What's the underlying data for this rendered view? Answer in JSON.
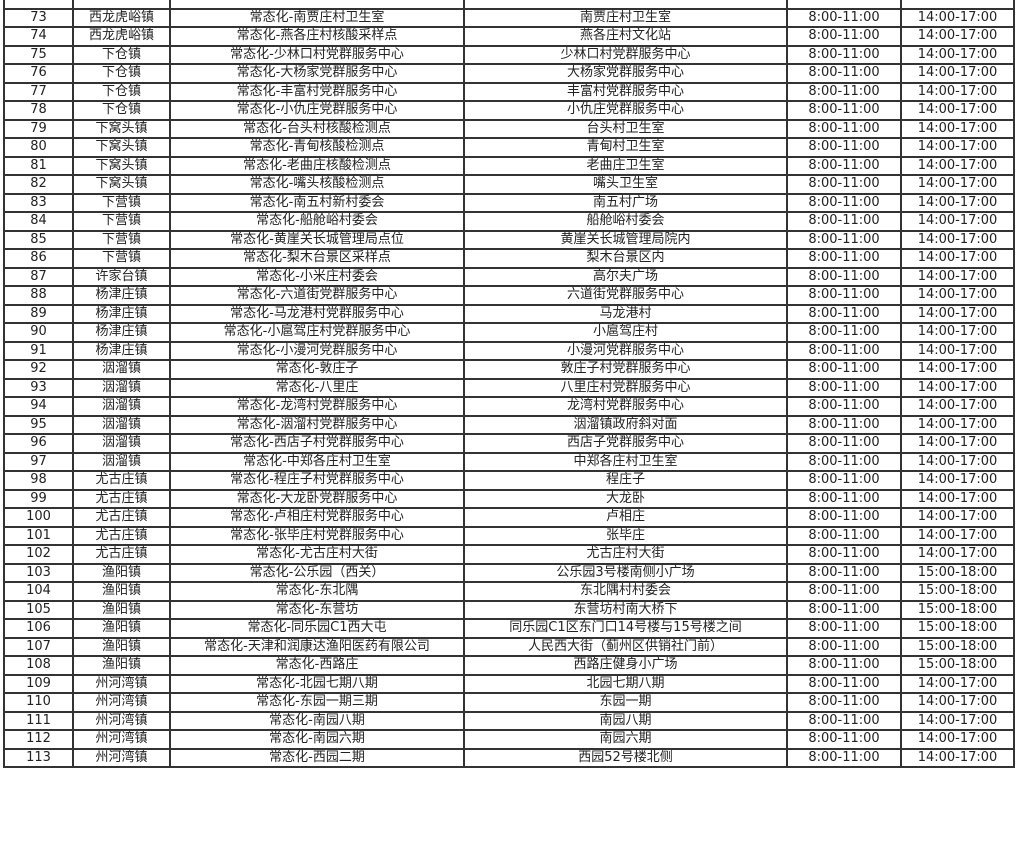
{
  "rows": [
    [
      "",
      "",
      "",
      "",
      "",
      ""
    ],
    [
      "73",
      "西龙虎峪镇",
      "常态化-南贾庄村卫生室",
      "南贾庄村卫生室",
      "8:00-11:00",
      "14:00-17:00"
    ],
    [
      "74",
      "西龙虎峪镇",
      "常态化-燕各庄村核酸采样点",
      "燕各庄村文化站",
      "8:00-11:00",
      "14:00-17:00"
    ],
    [
      "75",
      "下仓镇",
      "常态化-少林口村党群服务中心",
      "少林口村党群服务中心",
      "8:00-11:00",
      "14:00-17:00"
    ],
    [
      "76",
      "下仓镇",
      "常态化-大杨家党群服务中心",
      "大杨家党群服务中心",
      "8:00-11:00",
      "14:00-17:00"
    ],
    [
      "77",
      "下仓镇",
      "常态化-丰富村党群服务中心",
      "丰富村党群服务中心",
      "8:00-11:00",
      "14:00-17:00"
    ],
    [
      "78",
      "下仓镇",
      "常态化-小仇庄党群服务中心",
      "小仇庄党群服务中心",
      "8:00-11:00",
      "14:00-17:00"
    ],
    [
      "79",
      "下窝头镇",
      "常态化-台头村核酸检测点",
      "台头村卫生室",
      "8:00-11:00",
      "14:00-17:00"
    ],
    [
      "80",
      "下窝头镇",
      "常态化-青甸核酸检测点",
      "青甸村卫生室",
      "8:00-11:00",
      "14:00-17:00"
    ],
    [
      "81",
      "下窝头镇",
      "常态化-老曲庄核酸检测点",
      "老曲庄卫生室",
      "8:00-11:00",
      "14:00-17:00"
    ],
    [
      "82",
      "下窝头镇",
      "常态化-嘴头核酸检测点",
      "嘴头卫生室",
      "8:00-11:00",
      "14:00-17:00"
    ],
    [
      "83",
      "下营镇",
      "常态化-南五村新村委会",
      "南五村广场",
      "8:00-11:00",
      "14:00-17:00"
    ],
    [
      "84",
      "下营镇",
      "常态化-船舱峪村委会",
      "船舱峪村委会",
      "8:00-11:00",
      "14:00-17:00"
    ],
    [
      "85",
      "下营镇",
      "常态化-黄崖关长城管理局点位",
      "黄崖关长城管理局院内",
      "8:00-11:00",
      "14:00-17:00"
    ],
    [
      "86",
      "下营镇",
      "常态化-梨木台景区采样点",
      "梨木台景区内",
      "8:00-11:00",
      "14:00-17:00"
    ],
    [
      "87",
      "许家台镇",
      "常态化-小米庄村委会",
      "高尔夫广场",
      "8:00-11:00",
      "14:00-17:00"
    ],
    [
      "88",
      "杨津庄镇",
      "常态化-六道街党群服务中心",
      "六道街党群服务中心",
      "8:00-11:00",
      "14:00-17:00"
    ],
    [
      "89",
      "杨津庄镇",
      "常态化-马龙港村党群服务中心",
      "马龙港村",
      "8:00-11:00",
      "14:00-17:00"
    ],
    [
      "90",
      "杨津庄镇",
      "常态化-小扈驾庄村党群服务中心",
      "小扈驾庄村",
      "8:00-11:00",
      "14:00-17:00"
    ],
    [
      "91",
      "杨津庄镇",
      "常态化-小漫河党群服务中心",
      "小漫河党群服务中心",
      "8:00-11:00",
      "14:00-17:00"
    ],
    [
      "92",
      "洇溜镇",
      "常态化-敦庄子",
      "敦庄子村党群服务中心",
      "8:00-11:00",
      "14:00-17:00"
    ],
    [
      "93",
      "洇溜镇",
      "常态化-八里庄",
      "八里庄村党群服务中心",
      "8:00-11:00",
      "14:00-17:00"
    ],
    [
      "94",
      "洇溜镇",
      "常态化-龙湾村党群服务中心",
      "龙湾村党群服务中心",
      "8:00-11:00",
      "14:00-17:00"
    ],
    [
      "95",
      "洇溜镇",
      "常态化-洇溜村党群服务中心",
      "洇溜镇政府斜对面",
      "8:00-11:00",
      "14:00-17:00"
    ],
    [
      "96",
      "洇溜镇",
      "常态化-西店子村党群服务中心",
      "西店子党群服务中心",
      "8:00-11:00",
      "14:00-17:00"
    ],
    [
      "97",
      "洇溜镇",
      "常态化-中郑各庄村卫生室",
      "中郑各庄村卫生室",
      "8:00-11:00",
      "14:00-17:00"
    ],
    [
      "98",
      "尤古庄镇",
      "常态化-程庄子村党群服务中心",
      "程庄子",
      "8:00-11:00",
      "14:00-17:00"
    ],
    [
      "99",
      "尤古庄镇",
      "常态化-大龙卧党群服务中心",
      "大龙卧",
      "8:00-11:00",
      "14:00-17:00"
    ],
    [
      "100",
      "尤古庄镇",
      "常态化-卢相庄村党群服务中心",
      "卢相庄",
      "8:00-11:00",
      "14:00-17:00"
    ],
    [
      "101",
      "尤古庄镇",
      "常态化-张毕庄村党群服务中心",
      "张毕庄",
      "8:00-11:00",
      "14:00-17:00"
    ],
    [
      "102",
      "尤古庄镇",
      "常态化-尤古庄村大街",
      "尤古庄村大街",
      "8:00-11:00",
      "14:00-17:00"
    ],
    [
      "103",
      "渔阳镇",
      "常态化-公乐园（西关）",
      "公乐园3号楼南侧小广场",
      "8:00-11:00",
      "15:00-18:00"
    ],
    [
      "104",
      "渔阳镇",
      "常态化-东北隅",
      "东北隅村村委会",
      "8:00-11:00",
      "15:00-18:00"
    ],
    [
      "105",
      "渔阳镇",
      "常态化-东营坊",
      "东营坊村南大桥下",
      "8:00-11:00",
      "15:00-18:00"
    ],
    [
      "106",
      "渔阳镇",
      "常态化-同乐园C1西大屯",
      "同乐园C1区东门口14号楼与15号楼之间",
      "8:00-11:00",
      "15:00-18:00"
    ],
    [
      "107",
      "渔阳镇",
      "常态化-天津和润康达渔阳医药有限公司",
      "人民西大街（蓟州区供销社门前）",
      "8:00-11:00",
      "15:00-18:00"
    ],
    [
      "108",
      "渔阳镇",
      "常态化-西路庄",
      "西路庄健身小广场",
      "8:00-11:00",
      "15:00-18:00"
    ],
    [
      "109",
      "州河湾镇",
      "常态化-北园七期八期",
      "北园七期八期",
      "8:00-11:00",
      "14:00-17:00"
    ],
    [
      "110",
      "州河湾镇",
      "常态化-东园一期三期",
      "东园一期",
      "8:00-11:00",
      "14:00-17:00"
    ],
    [
      "111",
      "州河湾镇",
      "常态化-南园八期",
      "南园八期",
      "8:00-11:00",
      "14:00-17:00"
    ],
    [
      "112",
      "州河湾镇",
      "常态化-南园六期",
      "南园六期",
      "8:00-11:00",
      "14:00-17:00"
    ],
    [
      "113",
      "州河湾镇",
      "常态化-西园二期",
      "西园52号楼北侧",
      "8:00-11:00",
      "14:00-17:00"
    ]
  ]
}
